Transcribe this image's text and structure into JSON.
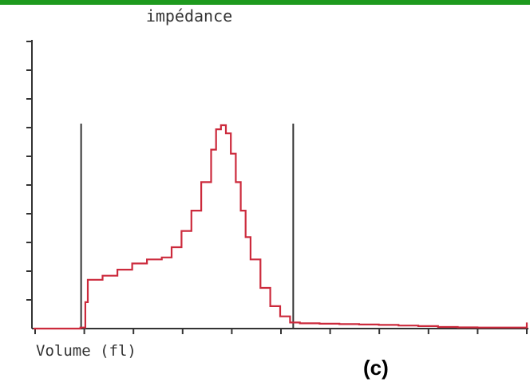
{
  "chart_data": {
    "type": "line",
    "title": "impédance",
    "xlabel": "Volume (fl)",
    "ylabel": "",
    "panel_label": "(c)",
    "xlim": [
      0,
      100
    ],
    "ylim": [
      0,
      100
    ],
    "grid": false,
    "x_ticks_count": 10,
    "y_ticks_count": 10,
    "markers": [
      9,
      52
    ],
    "series": [
      {
        "x": [
          0,
          9,
          9.5,
          10.5,
          11,
          14,
          17,
          20,
          23,
          26,
          28,
          30,
          32,
          34,
          36,
          37,
          38,
          39,
          40,
          41,
          42,
          43,
          44,
          46,
          48,
          50,
          52,
          54,
          58,
          62,
          66,
          70,
          74,
          78,
          82,
          86,
          90,
          94,
          98,
          100
        ],
        "y": [
          0,
          0,
          0.5,
          13,
          24,
          26,
          29,
          32,
          34,
          35,
          40,
          48,
          58,
          72,
          88,
          98,
          100,
          96,
          86,
          72,
          58,
          45,
          34,
          20,
          11,
          6,
          3,
          2.6,
          2.4,
          2.2,
          2,
          1.8,
          1.5,
          1.2,
          0.8,
          0.6,
          0.5,
          0.5,
          0.5,
          3
        ]
      }
    ],
    "colors": {
      "curve": "#cc2a3c",
      "axis": "#333333",
      "marker": "#333333",
      "accent_bar": "#1e9a1e"
    }
  }
}
